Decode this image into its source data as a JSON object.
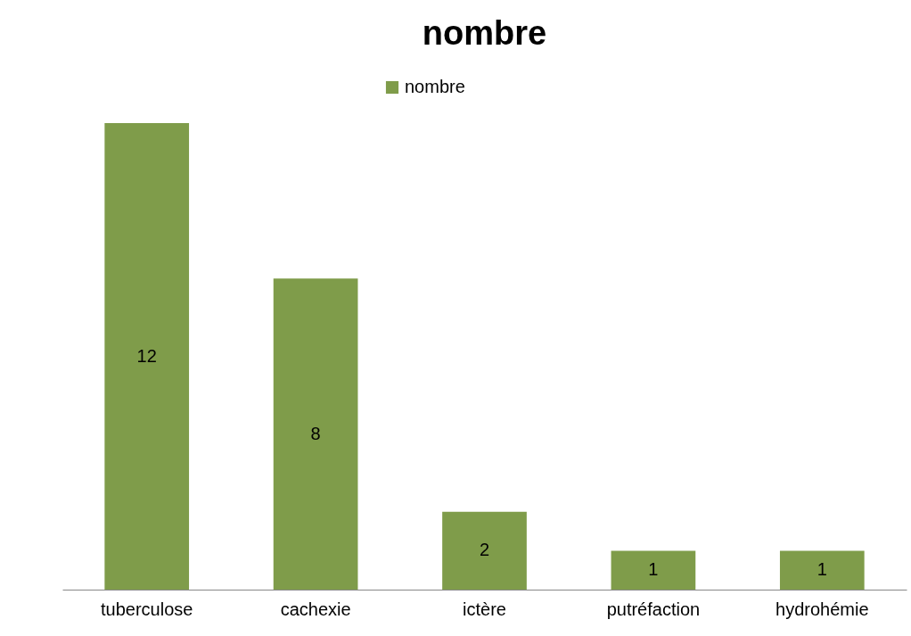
{
  "chart_data": {
    "type": "bar",
    "title": "nombre",
    "categories": [
      "tuberculose",
      "cachexie",
      "ictère",
      "putréfaction",
      "hydrohémie"
    ],
    "series": [
      {
        "name": "nombre",
        "color": "#7f9c4a",
        "values": [
          12,
          8,
          2,
          1,
          1
        ]
      }
    ],
    "data_labels": true,
    "legend": "top"
  }
}
